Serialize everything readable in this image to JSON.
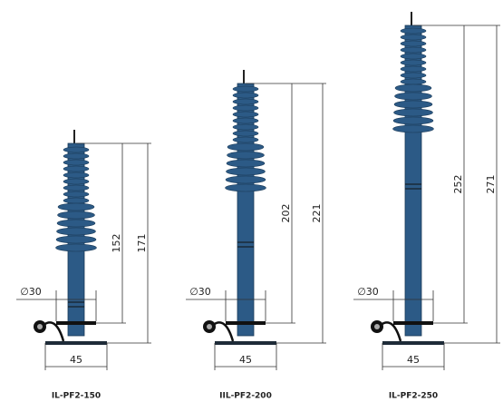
{
  "products": [
    {
      "label": "IL-PF2-150",
      "inner": 152,
      "outer": 171,
      "diameter": "∅30",
      "base": 45
    },
    {
      "label": "IIL-PF2-200",
      "inner": 202,
      "outer": 221,
      "diameter": "∅30",
      "base": 45
    },
    {
      "label": "IL-PF2-250",
      "inner": 252,
      "outer": 271,
      "diameter": "∅30",
      "base": 45
    }
  ]
}
